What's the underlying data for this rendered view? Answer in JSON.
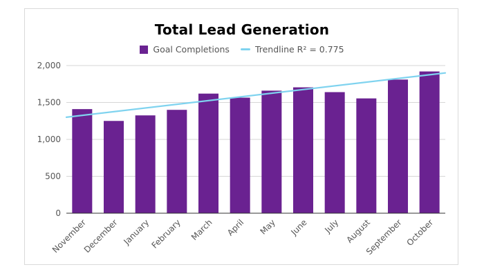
{
  "chart_data": {
    "type": "bar",
    "title": "Total Lead Generation",
    "xlabel": "",
    "ylabel": "",
    "categories": [
      "November",
      "December",
      "January",
      "February",
      "March",
      "April",
      "May",
      "June",
      "July",
      "August",
      "September",
      "October"
    ],
    "series": [
      {
        "name": "Goal Completions",
        "type": "bar",
        "color": "#6a2291",
        "values": [
          1410,
          1250,
          1325,
          1400,
          1620,
          1565,
          1660,
          1705,
          1640,
          1555,
          1810,
          1920
        ]
      },
      {
        "name": "Trendline R² = 0.775",
        "type": "line",
        "color": "#7fd3ef",
        "start": 1300,
        "end": 1900
      }
    ],
    "ylim": [
      0,
      2000
    ],
    "yticks": [
      "0",
      "500",
      "1,000",
      "1,500",
      "2,000"
    ],
    "ytick_values": [
      0,
      500,
      1000,
      1500,
      2000
    ],
    "grid": true,
    "legend_position": "top"
  }
}
